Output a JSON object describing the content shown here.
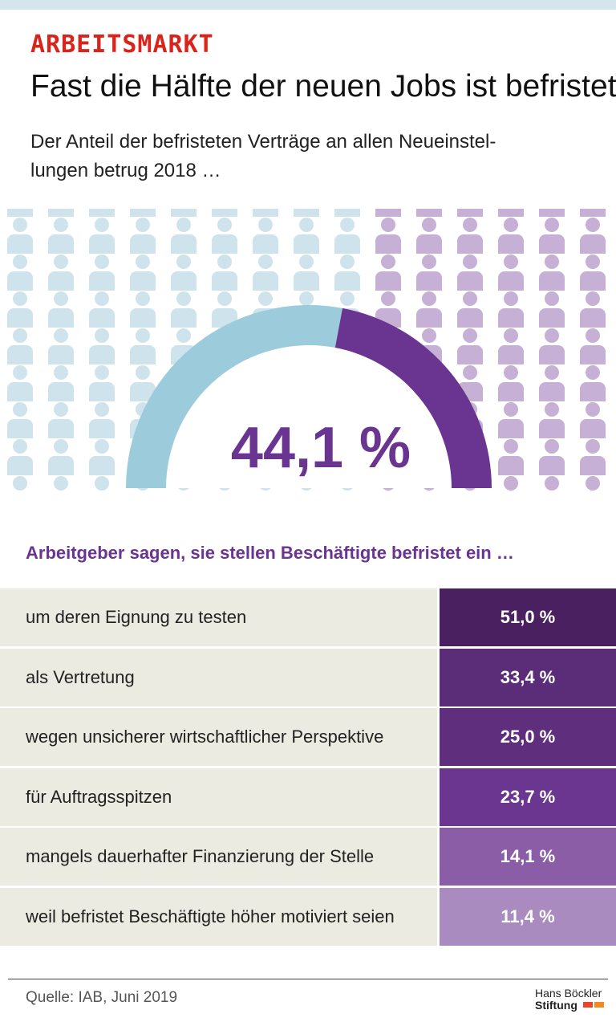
{
  "header": {
    "kicker": "ARBEITSMARKT",
    "title": "Fast die Hälfte der neuen Jobs ist befristet",
    "subtitle_lines": [
      "Der Anteil der befristeten Verträge an allen Neueinstel-",
      "lungen betrug 2018 …"
    ]
  },
  "gauge": {
    "value": 44.1,
    "label": "44,1 %"
  },
  "table": {
    "title": "Arbeitgeber sagen, sie stellen Beschäftigte befristet ein …",
    "rows": [
      [
        "um deren Eignung zu testen",
        "51,0 %"
      ],
      [
        "als Vertretung",
        "33,4 %"
      ],
      [
        "wegen unsicherer wirtschaftlicher Perspektive",
        "25,0 %"
      ],
      [
        "für Auftragsspitzen",
        "23,7 %"
      ],
      [
        "mangels dauerhafter Finanzierung der Stelle",
        "14,1 %"
      ],
      [
        "weil befristet Beschäftigte höher motiviert seien",
        "11,4 %"
      ]
    ]
  },
  "footer": {
    "source": "Quelle: IAB, Juni 2019",
    "logo_lines": [
      "Hans Böckler",
      "Stiftung"
    ]
  }
}
